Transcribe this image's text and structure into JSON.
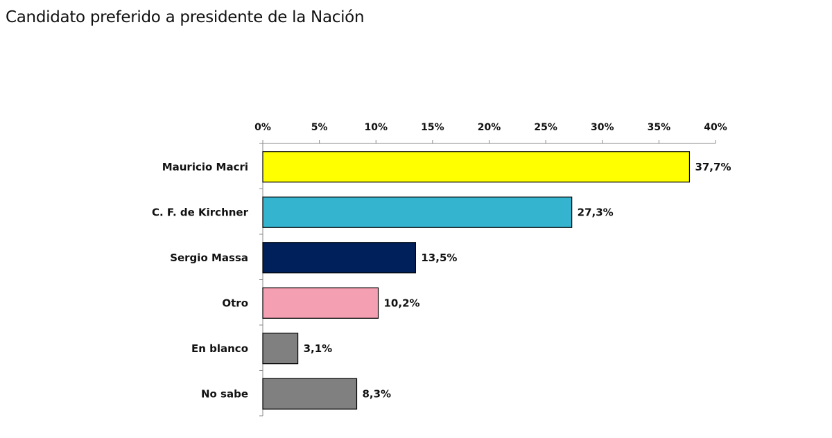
{
  "chart_data": {
    "type": "bar",
    "orientation": "horizontal",
    "title": "Candidato preferido a presidente de la Nación",
    "categories": [
      "Mauricio Macri",
      "C. F. de Kirchner",
      "Sergio Massa",
      "Otro",
      "En blanco",
      "No sabe"
    ],
    "values": [
      37.7,
      27.3,
      13.5,
      10.2,
      3.1,
      8.3
    ],
    "data_labels": [
      "37,7%",
      "27,3%",
      "13,5%",
      "10,2%",
      "3,1%",
      "8,3%"
    ],
    "colors": [
      "#ffff00",
      "#35b4d0",
      "#00205b",
      "#f59fb3",
      "#808080",
      "#808080"
    ],
    "xlim": [
      0,
      40
    ],
    "xticks": [
      0,
      5,
      10,
      15,
      20,
      25,
      30,
      35,
      40
    ],
    "xtick_labels": [
      "0%",
      "5%",
      "10%",
      "15%",
      "20%",
      "25%",
      "30%",
      "35%",
      "40%"
    ],
    "xaxis_position": "top",
    "grid": false,
    "legend": "none"
  }
}
